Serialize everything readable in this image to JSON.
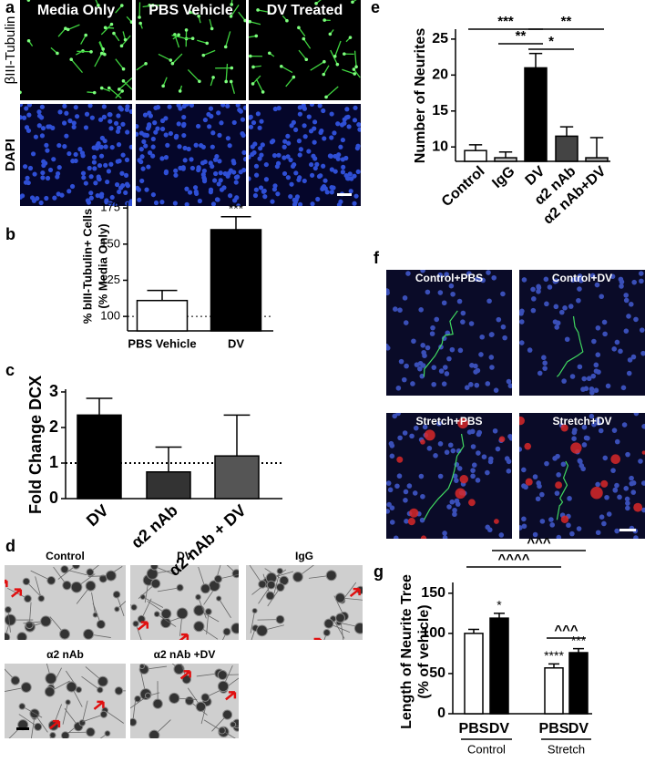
{
  "figure": {
    "panel_labels": [
      "a",
      "b",
      "c",
      "d",
      "e",
      "f",
      "g"
    ]
  },
  "panel_a": {
    "columns": [
      "Media Only",
      "PBS Vehicle",
      "DV Treated"
    ],
    "rows": [
      "βIII-Tubulin",
      "DAPI"
    ]
  },
  "panel_d": {
    "images": [
      "Control",
      "DV",
      "IgG",
      "α2 nAb",
      "α2 nAb +DV"
    ]
  },
  "panel_f": {
    "images": [
      "Control+PBS",
      "Control+DV",
      "Stretch+PBS",
      "Stretch+DV"
    ]
  },
  "chart_data": [
    {
      "type": "bar",
      "ylabel": [
        "% bIII-Tubulin+ Cells",
        "(% Media Only)"
      ],
      "categories": [
        "PBS Vehicle",
        "DV"
      ],
      "values": [
        111,
        160
      ],
      "errors": [
        7,
        9
      ],
      "colors": [
        "#ffffff",
        "#000000"
      ],
      "ylim": [
        90,
        177
      ],
      "yticks": [
        100,
        125,
        150,
        175
      ],
      "reference_line": 100,
      "annotations": [
        {
          "index": 1,
          "label": "***"
        }
      ]
    },
    {
      "type": "bar",
      "ylabel": [
        "Fold Change DCX"
      ],
      "categories": [
        "DV",
        "α2 nAb",
        "α2 nAb + DV"
      ],
      "values": [
        2.35,
        0.75,
        1.2
      ],
      "errors": [
        0.47,
        0.7,
        1.15
      ],
      "colors": [
        "#000000",
        "#333333",
        "#555555"
      ],
      "ylim": [
        0,
        3
      ],
      "yticks": [
        0,
        1,
        2,
        3
      ],
      "reference_line": 1
    },
    {
      "type": "bar",
      "ylabel": [
        "Number of Neurites"
      ],
      "categories": [
        "Control",
        "IgG",
        "DV",
        "α2 nAb",
        "α2 nAb+DV"
      ],
      "values": [
        9.5,
        8.5,
        21,
        11.5,
        8.5
      ],
      "errors": [
        0.8,
        0.8,
        2,
        1.3,
        2.8
      ],
      "colors": [
        "#ffffff",
        "#bbbbbb",
        "#000000",
        "#444444",
        "#999999"
      ],
      "ylim": [
        8,
        26
      ],
      "yticks": [
        10,
        15,
        20,
        25
      ],
      "comparisons": [
        {
          "between": [
            0,
            2
          ],
          "label": "***"
        },
        {
          "between": [
            2,
            4
          ],
          "label": "**"
        },
        {
          "between": [
            1,
            2
          ],
          "label": "**"
        },
        {
          "between": [
            2,
            3
          ],
          "label": "*"
        }
      ]
    },
    {
      "type": "bar",
      "ylabel": [
        "Length of Neurite Tree",
        "(% of vehicle)"
      ],
      "categories": [
        "PBS",
        "DV",
        "PBS",
        "DV"
      ],
      "values": [
        100,
        119,
        57,
        76
      ],
      "errors": [
        5,
        6,
        5,
        5
      ],
      "colors": [
        "#ffffff",
        "#000000",
        "#ffffff",
        "#000000"
      ],
      "ylim": [
        0,
        160
      ],
      "yticks": [
        0,
        50,
        100,
        150
      ],
      "groups": [
        {
          "label": "Control",
          "indices": [
            0,
            1
          ]
        },
        {
          "label": "Stretch",
          "indices": [
            2,
            3
          ]
        }
      ],
      "annotations": [
        {
          "index": 1,
          "label": "*"
        },
        {
          "index": 2,
          "label": "****"
        },
        {
          "index": 3,
          "label": "***"
        }
      ],
      "comparisons": [
        {
          "between": [
            1,
            3
          ],
          "label": "^^^"
        },
        {
          "between": [
            0,
            2
          ],
          "label": "^^^^"
        },
        {
          "between": [
            2,
            3
          ],
          "label": "^^^"
        }
      ]
    }
  ]
}
